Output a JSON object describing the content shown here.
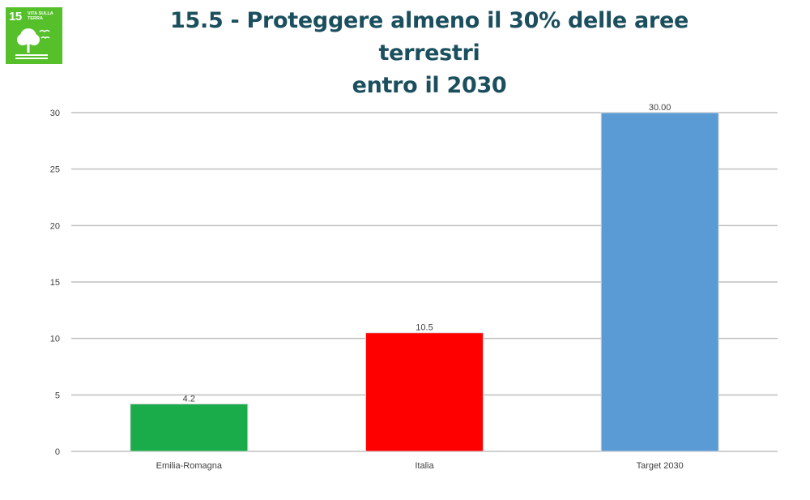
{
  "badge": {
    "number": "15",
    "label": "VITA SULLA TERRA",
    "color": "#56c02b",
    "icon": "tree-icon"
  },
  "title": {
    "line1": "15.5 - Proteggere almeno il 30% delle aree terrestri",
    "line2": "entro il 2030"
  },
  "chart_data": {
    "type": "bar",
    "title": "15.5 - Proteggere almeno il 30% delle aree terrestri entro il 2030",
    "categories": [
      "Emilia-Romagna",
      "Italia",
      "Target 2030"
    ],
    "values": [
      4.2,
      10.5,
      30.0
    ],
    "data_labels": [
      "4.2",
      "10.5",
      "30.00"
    ],
    "colors": [
      "#1aab4b",
      "#ff0000",
      "#5b9bd5"
    ],
    "ylim": [
      0,
      30
    ],
    "yticks": [
      0,
      5,
      10,
      15,
      20,
      25,
      30
    ],
    "grid": true,
    "xlabel": "",
    "ylabel": ""
  }
}
